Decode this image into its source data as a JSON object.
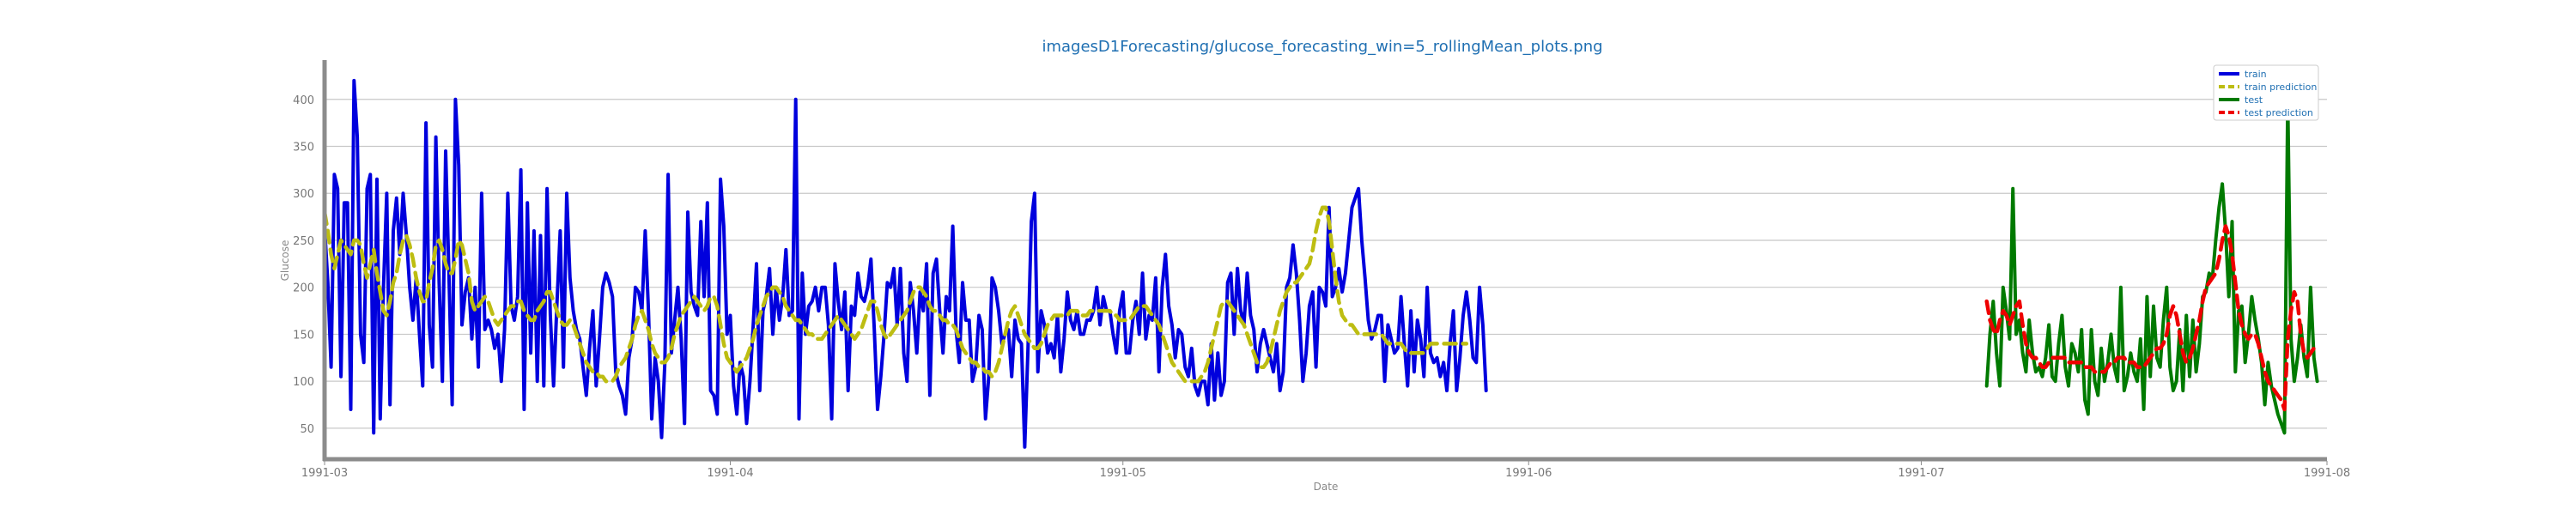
{
  "chart_data": {
    "type": "line",
    "title": "imagesD1Forecasting/glucose_forecasting_win=5_rollingMean_plots.png",
    "xlabel": "Date",
    "ylabel": "Glucose",
    "x_range": [
      "1991-03-01",
      "1991-08-01"
    ],
    "ylim": [
      17,
      440
    ],
    "y_ticks": [
      50,
      100,
      150,
      200,
      250,
      300,
      350,
      400
    ],
    "x_ticks": [
      "1991-03",
      "1991-04",
      "1991-05",
      "1991-06",
      "1991-07",
      "1991-08"
    ],
    "grid": "horizontal",
    "legend_position": "top-right",
    "series": [
      {
        "name": "train",
        "color": "#0000dd",
        "style": "solid",
        "x_start": "1991-03-01",
        "x_step_days": 0.25,
        "values": [
          265,
          205,
          115,
          320,
          305,
          105,
          290,
          290,
          70,
          420,
          360,
          150,
          120,
          305,
          320,
          45,
          315,
          60,
          200,
          300,
          75,
          260,
          295,
          235,
          300,
          255,
          200,
          165,
          210,
          150,
          95,
          375,
          160,
          115,
          360,
          205,
          100,
          345,
          215,
          75,
          400,
          330,
          160,
          195,
          210,
          145,
          200,
          115,
          300,
          155,
          165,
          155,
          135,
          150,
          100,
          155,
          300,
          180,
          165,
          190,
          325,
          70,
          290,
          130,
          260,
          100,
          255,
          95,
          305,
          170,
          95,
          180,
          260,
          115,
          300,
          210,
          175,
          155,
          145,
          115,
          85,
          135,
          175,
          95,
          145,
          200,
          215,
          205,
          190,
          110,
          95,
          85,
          65,
          125,
          145,
          200,
          195,
          175,
          260,
          175,
          60,
          125,
          100,
          40,
          120,
          320,
          130,
          165,
          200,
          145,
          55,
          280,
          195,
          180,
          170,
          270,
          190,
          290,
          90,
          85,
          65,
          315,
          265,
          150,
          170,
          95,
          65,
          120,
          105,
          55,
          100,
          160,
          225,
          90,
          175,
          190,
          220,
          150,
          200,
          165,
          190,
          240,
          170,
          175,
          400,
          60,
          215,
          150,
          180,
          185,
          200,
          175,
          200,
          200,
          160,
          60,
          225,
          185,
          155,
          195,
          90,
          180,
          170,
          215,
          190,
          185,
          200,
          230,
          155,
          70,
          105,
          150,
          205,
          200,
          220,
          160,
          220,
          130,
          100,
          205,
          175,
          130,
          195,
          175,
          225,
          85,
          215,
          230,
          175,
          130,
          190,
          175,
          265,
          155,
          120,
          205,
          165,
          165,
          100,
          115,
          170,
          155,
          60,
          105,
          210,
          200,
          175,
          140,
          150,
          155,
          105,
          165,
          145,
          140,
          30,
          135,
          270,
          300,
          110,
          175,
          160,
          130,
          140,
          125,
          170,
          110,
          145,
          195,
          165,
          155,
          175,
          150,
          150,
          165,
          165,
          175,
          200,
          160,
          190,
          175,
          175,
          150,
          130,
          175,
          195,
          130,
          130,
          165,
          185,
          150,
          215,
          145,
          170,
          165,
          210,
          110,
          200,
          235,
          180,
          160,
          125,
          155,
          150,
          115,
          105,
          135,
          95,
          85,
          100,
          100,
          75,
          140,
          80,
          130,
          85,
          100,
          205,
          215,
          150,
          220,
          175,
          160,
          215,
          170,
          155,
          110,
          140,
          155,
          140,
          125,
          110,
          140,
          90,
          110,
          200,
          210,
          245,
          215,
          165,
          100,
          130,
          180,
          195,
          115,
          200,
          195,
          180,
          285,
          190,
          200,
          220,
          195,
          215,
          250,
          285,
          295,
          305,
          250,
          210,
          165,
          145,
          155,
          170,
          170,
          100,
          160,
          145,
          130,
          135,
          190,
          140,
          95,
          175,
          110,
          165,
          145,
          105,
          200,
          130,
          120,
          125,
          105,
          120,
          90,
          140,
          175,
          90,
          125,
          170,
          195,
          165,
          125,
          120,
          200,
          160,
          90
        ]
      },
      {
        "name": "train prediction",
        "color": "#bdbd12",
        "style": "dashed",
        "x_start": "1991-03-01",
        "x_step_days": 0.25,
        "values": [
          280,
          260,
          235,
          220,
          235,
          250,
          245,
          240,
          235,
          250,
          250,
          245,
          225,
          210,
          225,
          240,
          215,
          195,
          175,
          170,
          185,
          205,
          215,
          235,
          250,
          255,
          245,
          230,
          210,
          195,
          185,
          185,
          205,
          220,
          245,
          250,
          240,
          225,
          215,
          215,
          230,
          250,
          245,
          230,
          215,
          185,
          175,
          180,
          185,
          190,
          185,
          175,
          165,
          160,
          165,
          170,
          175,
          180,
          180,
          185,
          185,
          175,
          170,
          165,
          165,
          175,
          180,
          185,
          195,
          195,
          185,
          175,
          165,
          160,
          160,
          165,
          160,
          150,
          140,
          130,
          120,
          115,
          110,
          110,
          105,
          105,
          100,
          100,
          100,
          105,
          115,
          120,
          125,
          135,
          145,
          160,
          170,
          175,
          165,
          155,
          140,
          130,
          125,
          120,
          120,
          125,
          135,
          150,
          160,
          170,
          175,
          180,
          185,
          190,
          185,
          180,
          175,
          180,
          190,
          190,
          180,
          160,
          140,
          125,
          120,
          115,
          110,
          115,
          120,
          125,
          135,
          145,
          160,
          170,
          180,
          190,
          195,
          200,
          200,
          195,
          190,
          180,
          175,
          170,
          165,
          165,
          160,
          155,
          150,
          150,
          145,
          145,
          145,
          150,
          155,
          160,
          165,
          170,
          165,
          160,
          155,
          150,
          145,
          150,
          155,
          165,
          175,
          185,
          185,
          175,
          160,
          150,
          145,
          150,
          155,
          160,
          165,
          170,
          175,
          185,
          195,
          200,
          200,
          195,
          190,
          180,
          175,
          175,
          170,
          165,
          165,
          160,
          160,
          155,
          145,
          135,
          130,
          125,
          120,
          120,
          115,
          115,
          110,
          110,
          105,
          110,
          120,
          135,
          150,
          165,
          175,
          180,
          170,
          160,
          150,
          145,
          140,
          135,
          135,
          140,
          150,
          160,
          165,
          170,
          170,
          170,
          170,
          170,
          175,
          175,
          175,
          170,
          170,
          170,
          175,
          175,
          175,
          175,
          175,
          175,
          175,
          170,
          170,
          165,
          165,
          165,
          165,
          170,
          175,
          180,
          180,
          180,
          175,
          170,
          165,
          160,
          150,
          140,
          130,
          120,
          115,
          110,
          105,
          100,
          100,
          100,
          100,
          100,
          105,
          110,
          120,
          135,
          150,
          165,
          180,
          185,
          185,
          180,
          175,
          170,
          165,
          160,
          150,
          140,
          130,
          120,
          115,
          115,
          120,
          130,
          145,
          160,
          175,
          185,
          195,
          200,
          205,
          205,
          210,
          215,
          220,
          225,
          240,
          260,
          275,
          285,
          285,
          270,
          240,
          210,
          185,
          170,
          165,
          160,
          160,
          155,
          150,
          150,
          150,
          150,
          150,
          150,
          150,
          150,
          145,
          140,
          140,
          140,
          140,
          140,
          135,
          130,
          130,
          130,
          130,
          130,
          130,
          135,
          140,
          140,
          140,
          140,
          140,
          140,
          140,
          140,
          140,
          140,
          140,
          140
        ]
      },
      {
        "name": "test",
        "color": "#007a00",
        "style": "solid",
        "x_start": "1991-07-06",
        "x_step_days": 0.25,
        "values": [
          95,
          150,
          185,
          130,
          95,
          200,
          175,
          145,
          305,
          150,
          165,
          130,
          110,
          165,
          130,
          110,
          115,
          105,
          125,
          160,
          105,
          100,
          140,
          170,
          115,
          95,
          140,
          130,
          110,
          155,
          80,
          65,
          155,
          100,
          85,
          135,
          100,
          120,
          150,
          115,
          100,
          200,
          90,
          105,
          130,
          110,
          100,
          145,
          70,
          190,
          105,
          180,
          125,
          115,
          165,
          200,
          115,
          90,
          100,
          155,
          90,
          170,
          105,
          165,
          110,
          140,
          190,
          195,
          215,
          210,
          250,
          285,
          310,
          260,
          190,
          270,
          110,
          175,
          180,
          120,
          150,
          190,
          165,
          145,
          120,
          75,
          120,
          95,
          80,
          65,
          55,
          45,
          400,
          145,
          100,
          125,
          160,
          125,
          105,
          200,
          125,
          100
        ]
      },
      {
        "name": "test prediction",
        "color": "#ee0000",
        "style": "dashed",
        "x_start": "1991-07-06",
        "x_step_days": 0.25,
        "values": [
          185,
          165,
          155,
          150,
          165,
          175,
          170,
          160,
          170,
          180,
          185,
          160,
          140,
          130,
          125,
          125,
          120,
          115,
          115,
          120,
          125,
          125,
          125,
          125,
          125,
          120,
          120,
          120,
          120,
          120,
          115,
          115,
          115,
          110,
          110,
          110,
          110,
          115,
          120,
          120,
          125,
          125,
          125,
          120,
          120,
          120,
          115,
          115,
          115,
          120,
          125,
          130,
          135,
          135,
          140,
          150,
          170,
          180,
          170,
          150,
          130,
          120,
          125,
          135,
          150,
          165,
          185,
          200,
          205,
          210,
          215,
          230,
          250,
          265,
          255,
          235,
          205,
          175,
          160,
          150,
          145,
          150,
          150,
          140,
          125,
          110,
          100,
          95,
          90,
          85,
          80,
          70,
          145,
          175,
          195,
          185,
          150,
          130,
          125,
          130,
          135,
          130
        ]
      }
    ]
  }
}
